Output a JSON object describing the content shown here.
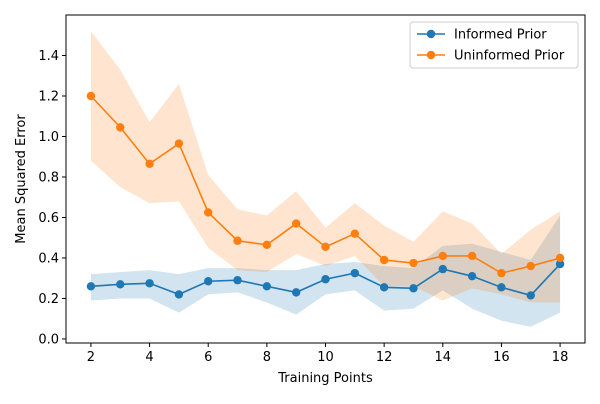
{
  "chart_data": {
    "type": "line",
    "title": "",
    "xlabel": "Training Points",
    "ylabel": "Mean Squared Error",
    "xlim": [
      1.15,
      18.85
    ],
    "ylim": [
      -0.02,
      1.6
    ],
    "xticks": [
      2,
      4,
      6,
      8,
      10,
      12,
      14,
      16,
      18
    ],
    "yticks": [
      0.0,
      0.2,
      0.4,
      0.6,
      0.8,
      1.0,
      1.2,
      1.4
    ],
    "grid": false,
    "legend": "top-right",
    "x": [
      2,
      3,
      4,
      5,
      6,
      7,
      8,
      9,
      10,
      11,
      12,
      13,
      14,
      15,
      16,
      17,
      18
    ],
    "series": [
      {
        "name": "Informed Prior",
        "color": "#1f77b4",
        "band_color": "#1f77b4",
        "values": [
          0.26,
          0.27,
          0.275,
          0.22,
          0.285,
          0.29,
          0.26,
          0.23,
          0.295,
          0.325,
          0.255,
          0.25,
          0.345,
          0.31,
          0.255,
          0.215,
          0.37
        ],
        "lower": [
          0.19,
          0.2,
          0.2,
          0.13,
          0.22,
          0.23,
          0.18,
          0.12,
          0.22,
          0.24,
          0.14,
          0.15,
          0.24,
          0.15,
          0.09,
          0.06,
          0.13
        ],
        "upper": [
          0.32,
          0.33,
          0.34,
          0.32,
          0.35,
          0.35,
          0.34,
          0.34,
          0.37,
          0.38,
          0.36,
          0.35,
          0.46,
          0.47,
          0.43,
          0.39,
          0.61
        ]
      },
      {
        "name": "Uninformed Prior",
        "color": "#ff7f0e",
        "band_color": "#ff7f0e",
        "values": [
          1.2,
          1.045,
          0.865,
          0.965,
          0.625,
          0.485,
          0.465,
          0.57,
          0.455,
          0.52,
          0.39,
          0.375,
          0.41,
          0.41,
          0.325,
          0.36,
          0.4
        ],
        "lower": [
          0.88,
          0.75,
          0.67,
          0.68,
          0.45,
          0.34,
          0.33,
          0.42,
          0.36,
          0.41,
          0.26,
          0.26,
          0.19,
          0.25,
          0.22,
          0.18,
          0.18
        ],
        "upper": [
          1.52,
          1.33,
          1.07,
          1.26,
          0.81,
          0.64,
          0.61,
          0.73,
          0.55,
          0.67,
          0.56,
          0.48,
          0.63,
          0.57,
          0.42,
          0.54,
          0.63
        ]
      }
    ]
  }
}
